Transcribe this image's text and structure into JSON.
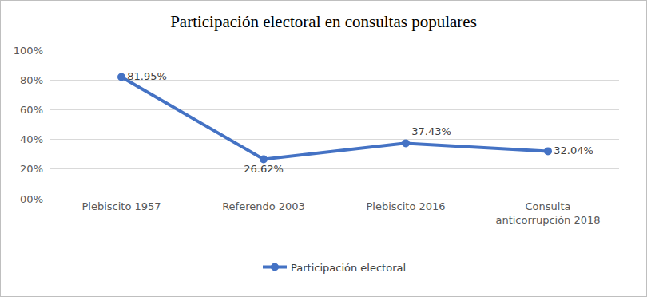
{
  "chart_data": {
    "type": "line",
    "title": "Participación electoral en consultas populares",
    "categories": [
      "Plebiscito 1957",
      "Referendo 2003",
      "Plebiscito 2016",
      "Consulta\nanticorrupción 2018"
    ],
    "series": [
      {
        "name": "Participación electoral",
        "color": "#4472c4",
        "marker": "circle",
        "values": [
          81.95,
          26.62,
          37.43,
          32.04
        ],
        "value_labels": [
          "81.95%",
          "26.62%",
          "37.43%",
          "32.04%"
        ]
      }
    ],
    "ylim": [
      0,
      100
    ],
    "yticks": [
      {
        "value": 0,
        "label": "00%"
      },
      {
        "value": 20,
        "label": "20%"
      },
      {
        "value": 40,
        "label": "40%"
      },
      {
        "value": 60,
        "label": "60%"
      },
      {
        "value": 80,
        "label": "80%"
      },
      {
        "value": 100,
        "label": "100%"
      }
    ],
    "grid": true,
    "data_labels": true,
    "legend": "bottom"
  }
}
